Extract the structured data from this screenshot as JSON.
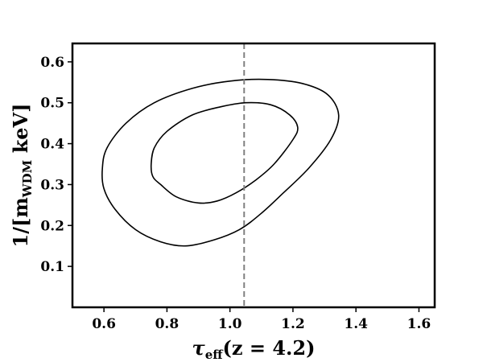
{
  "chart_data": {
    "type": "contour",
    "xlabel": {
      "main": "τ",
      "sub": "eff",
      "rest": "(z = 4.2)"
    },
    "ylabel": {
      "pre": "1/[m",
      "sub": "WDM",
      "post": " keV]"
    },
    "xlim": [
      0.5,
      1.65
    ],
    "ylim": [
      0.0,
      0.645
    ],
    "xticks": [
      0.6,
      0.8,
      1.0,
      1.2,
      1.4,
      1.6
    ],
    "xtick_labels": [
      "0.6",
      "0.8",
      "1.0",
      "1.2",
      "1.4",
      "1.6"
    ],
    "yticks": [
      0.1,
      0.2,
      0.3,
      0.4,
      0.5,
      0.6
    ],
    "ytick_labels": [
      "0.1",
      "0.2",
      "0.3",
      "0.4",
      "0.5",
      "0.6"
    ],
    "vline": {
      "x": 1.045,
      "style": "dashed",
      "color": "#808080"
    },
    "contours": [
      {
        "level": "inner",
        "color": "#000000",
        "points": [
          [
            0.75,
            0.35
          ],
          [
            0.76,
            0.39
          ],
          [
            0.8,
            0.43
          ],
          [
            0.88,
            0.47
          ],
          [
            0.97,
            0.49
          ],
          [
            1.05,
            0.5
          ],
          [
            1.13,
            0.495
          ],
          [
            1.19,
            0.47
          ],
          [
            1.215,
            0.44
          ],
          [
            1.2,
            0.41
          ],
          [
            1.14,
            0.35
          ],
          [
            1.08,
            0.31
          ],
          [
            1.02,
            0.28
          ],
          [
            0.96,
            0.26
          ],
          [
            0.9,
            0.255
          ],
          [
            0.83,
            0.27
          ],
          [
            0.78,
            0.3
          ],
          [
            0.755,
            0.32
          ]
        ]
      },
      {
        "level": "outer",
        "color": "#000000",
        "points": [
          [
            0.595,
            0.34
          ],
          [
            0.61,
            0.39
          ],
          [
            0.67,
            0.45
          ],
          [
            0.76,
            0.5
          ],
          [
            0.88,
            0.535
          ],
          [
            1.0,
            0.553
          ],
          [
            1.12,
            0.557
          ],
          [
            1.23,
            0.547
          ],
          [
            1.31,
            0.52
          ],
          [
            1.345,
            0.47
          ],
          [
            1.32,
            0.41
          ],
          [
            1.25,
            0.34
          ],
          [
            1.17,
            0.28
          ],
          [
            1.1,
            0.23
          ],
          [
            1.03,
            0.19
          ],
          [
            0.95,
            0.165
          ],
          [
            0.86,
            0.15
          ],
          [
            0.78,
            0.16
          ],
          [
            0.7,
            0.19
          ],
          [
            0.635,
            0.24
          ],
          [
            0.6,
            0.29
          ]
        ]
      }
    ],
    "grid": false,
    "legend": "none"
  }
}
